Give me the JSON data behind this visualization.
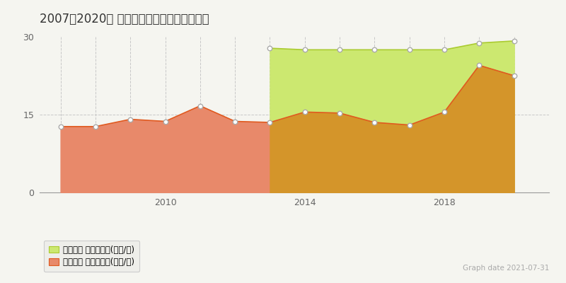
{
  "title": "2007～2020年 熊本市東区戸島西の地価推移",
  "background_color": "#f5f5f0",
  "grid_color": "#c8c8c8",
  "xlim": [
    2006.4,
    2021.0
  ],
  "ylim": [
    0,
    30
  ],
  "yticks": [
    0,
    15,
    30
  ],
  "xtick_years": [
    2010,
    2014,
    2018
  ],
  "graph_date": "Graph date 2021-07-31",
  "legend_label_green": "地価公示 平均坪単価(万円/坪)",
  "legend_label_orange": "取引価格 平均坪単価(万円/坪)",
  "line_green_x": [
    2013,
    2014,
    2015,
    2016,
    2017,
    2018,
    2019,
    2020
  ],
  "line_green_y": [
    27.8,
    27.5,
    27.5,
    27.5,
    27.5,
    27.5,
    28.8,
    29.2
  ],
  "line_orange_x": [
    2007,
    2008,
    2009,
    2010,
    2011,
    2012,
    2013,
    2014,
    2015,
    2016,
    2017,
    2018,
    2019,
    2020
  ],
  "line_orange_y": [
    12.7,
    12.7,
    14.1,
    13.7,
    16.7,
    13.7,
    13.5,
    15.5,
    15.3,
    13.5,
    13.0,
    15.5,
    24.5,
    22.5
  ],
  "color_green_fill": "#cce870",
  "color_green_line": "#aacb30",
  "color_orange_fill_old": "#e8896a",
  "color_orange_fill_new": "#d4952a",
  "color_orange_line": "#e05a20",
  "marker_fill": "#ffffff",
  "marker_edge": "#aaaaaa",
  "transition_year": 2013,
  "legend_bg": "#eeeeea",
  "legend_edge": "#cccccc"
}
